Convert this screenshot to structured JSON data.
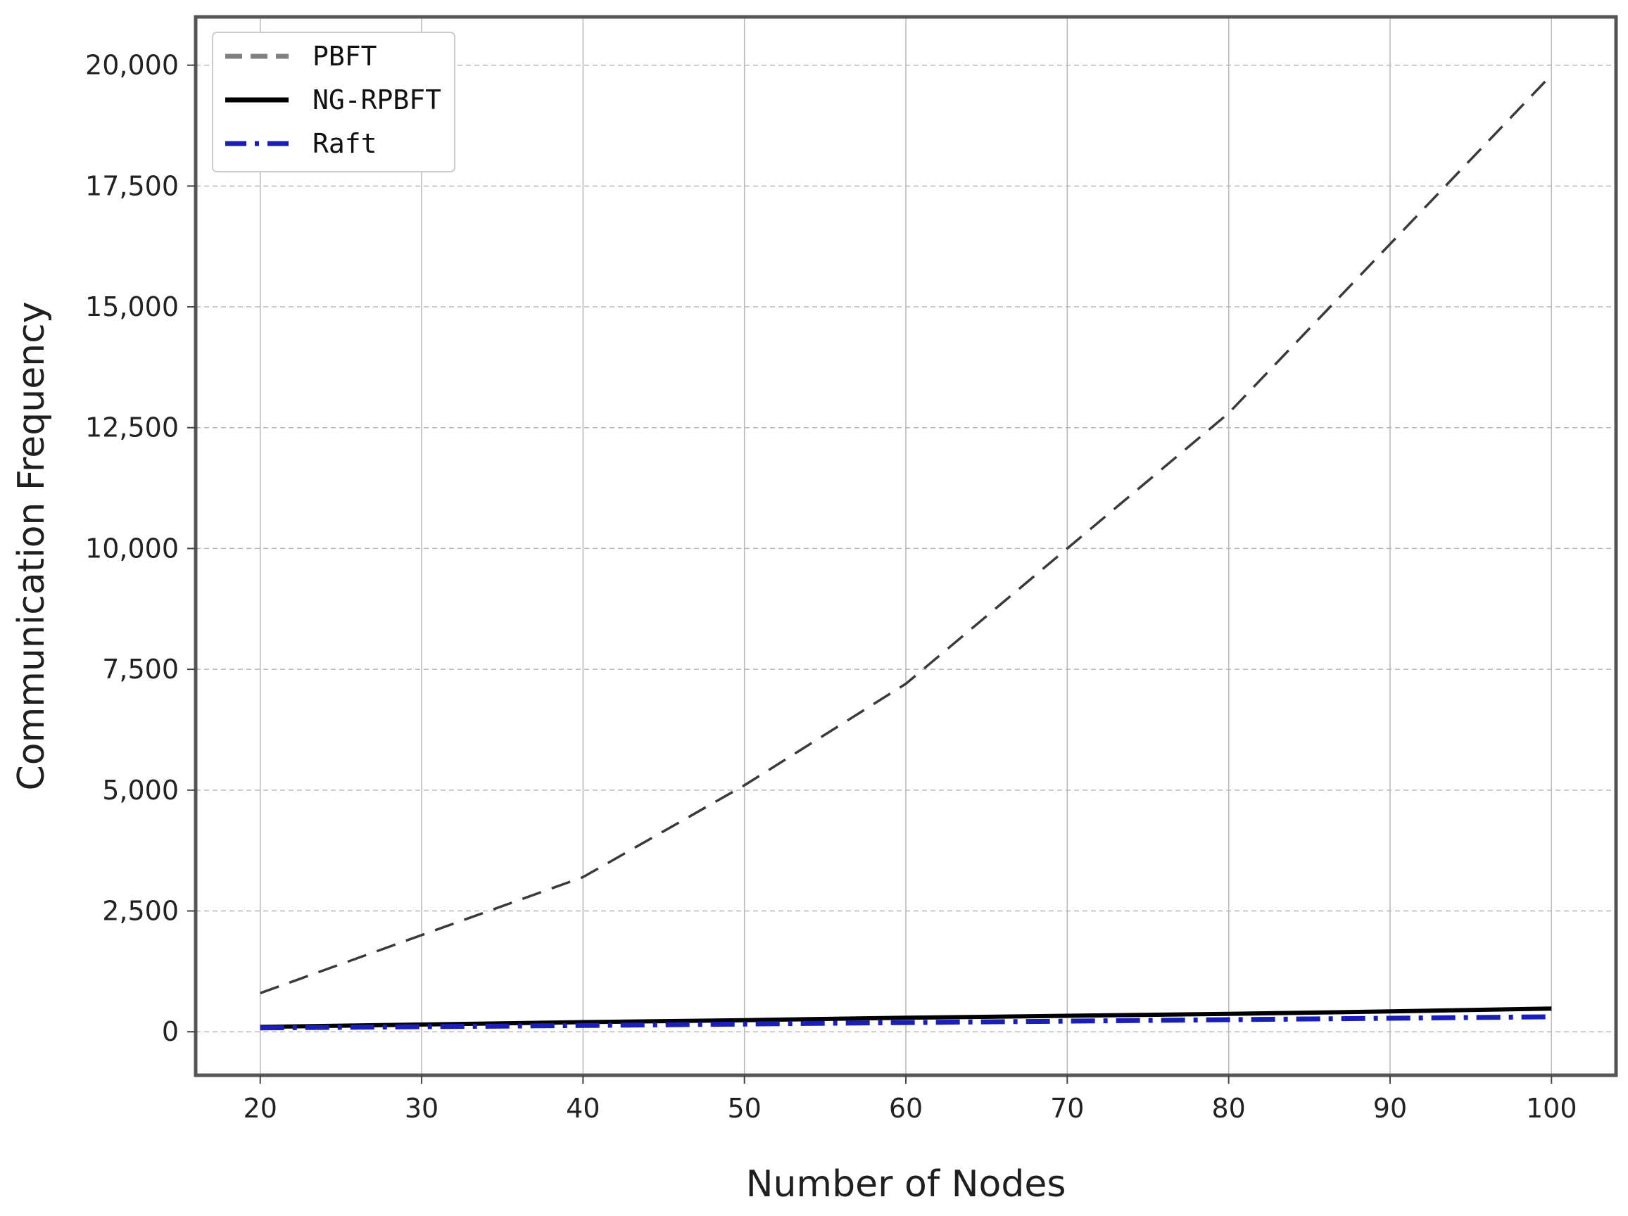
{
  "chart_data": {
    "type": "line",
    "title": "",
    "xlabel": "Number of Nodes",
    "ylabel": "Communication Frequency",
    "xlim": [
      16,
      104
    ],
    "ylim": [
      -900,
      21000
    ],
    "x_ticks": [
      20,
      30,
      40,
      50,
      60,
      70,
      80,
      90,
      100
    ],
    "x_tick_labels": [
      "20",
      "30",
      "40",
      "50",
      "60",
      "70",
      "80",
      "90",
      "100"
    ],
    "y_ticks": [
      0,
      2500,
      5000,
      7500,
      10000,
      12500,
      15000,
      17500,
      20000
    ],
    "y_tick_labels": [
      "0",
      "2,500",
      "5,000",
      "7,500",
      "10,000",
      "12,500",
      "15,000",
      "17,500",
      "20,000"
    ],
    "grid": true,
    "legend_position": "top-left",
    "x": [
      20,
      30,
      40,
      50,
      60,
      70,
      80,
      90,
      100
    ],
    "series": [
      {
        "name": "PBFT",
        "values": [
          800,
          2000,
          3200,
          5100,
          7200,
          10000,
          12800,
          16300,
          19800
        ],
        "color": "#808080",
        "line_color": "#3a3a3a",
        "style": "dashed"
      },
      {
        "name": "NG-RPBFT",
        "values": [
          100,
          150,
          200,
          240,
          290,
          330,
          370,
          420,
          480
        ],
        "color": "#000000",
        "style": "solid"
      },
      {
        "name": "Raft",
        "values": [
          80,
          105,
          130,
          160,
          190,
          220,
          250,
          280,
          310
        ],
        "color": "#1a1fb5",
        "style": "dash-dot"
      }
    ]
  }
}
